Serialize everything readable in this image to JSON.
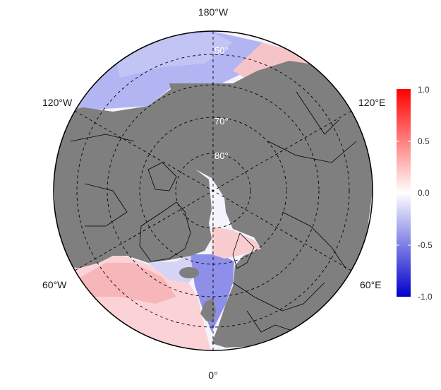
{
  "map": {
    "projection": "north-polar-stereographic",
    "lon_labels": {
      "top": "180°W",
      "bottom": "0°",
      "upper_left": "120°W",
      "upper_right": "120°E",
      "lower_left": "60°W",
      "lower_right": "60°E"
    },
    "lat_labels": {
      "lat50": "50°",
      "lat70": "70°",
      "lat80": "80°"
    },
    "ocean_anomalies": [
      {
        "region": "north-pacific",
        "value": -0.35
      },
      {
        "region": "bering-sea",
        "value": 0.3
      },
      {
        "region": "norwegian-sea",
        "value": 0.35
      },
      {
        "region": "north-sea",
        "value": -0.5
      },
      {
        "region": "labrador-sea",
        "value": -0.35
      },
      {
        "region": "north-atlantic",
        "value": 0.35
      }
    ]
  },
  "colorbar": {
    "ticks": [
      "1.0",
      "0.5",
      "0.0",
      "-0.5",
      "-1.0"
    ],
    "min": -1.0,
    "max": 1.0,
    "colors": {
      "high": "#ff0000",
      "mid": "#ffffff",
      "low": "#0000cc"
    }
  },
  "colors": {
    "land": "#7f7f7f",
    "frame": "#000000"
  }
}
